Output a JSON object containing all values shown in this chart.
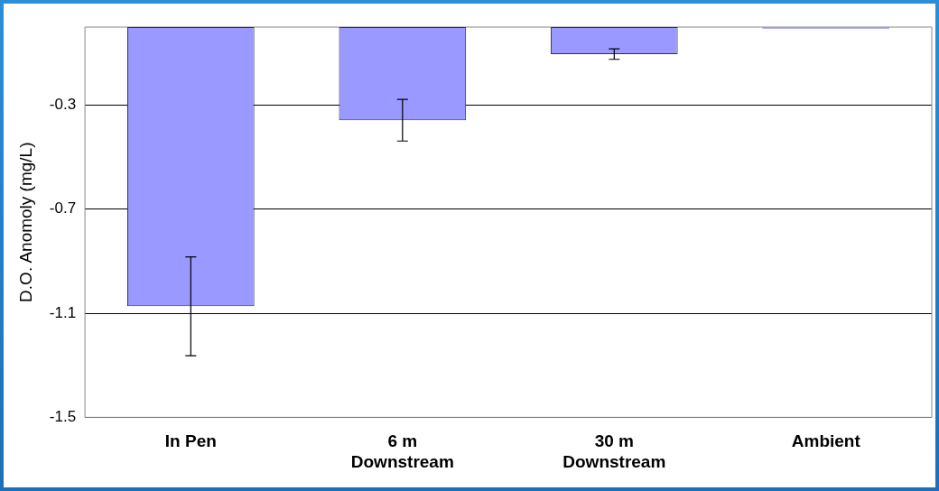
{
  "chart_data": {
    "type": "bar",
    "ylabel": "D.O. Anomoly (mg/L)",
    "categories": [
      "In Pen",
      "6 m\nDownstream",
      "30 m\nDownstream",
      "Ambient"
    ],
    "values": [
      -1.073,
      -0.358,
      -0.104,
      -0.006
    ],
    "errors": [
      0.19,
      0.08,
      0.02,
      null
    ],
    "color": "#9999ff",
    "ylim": [
      -1.5,
      0
    ],
    "yticks": [
      -1.5,
      -1.1,
      -0.7,
      -0.3
    ],
    "grid": "y",
    "legend": false
  }
}
